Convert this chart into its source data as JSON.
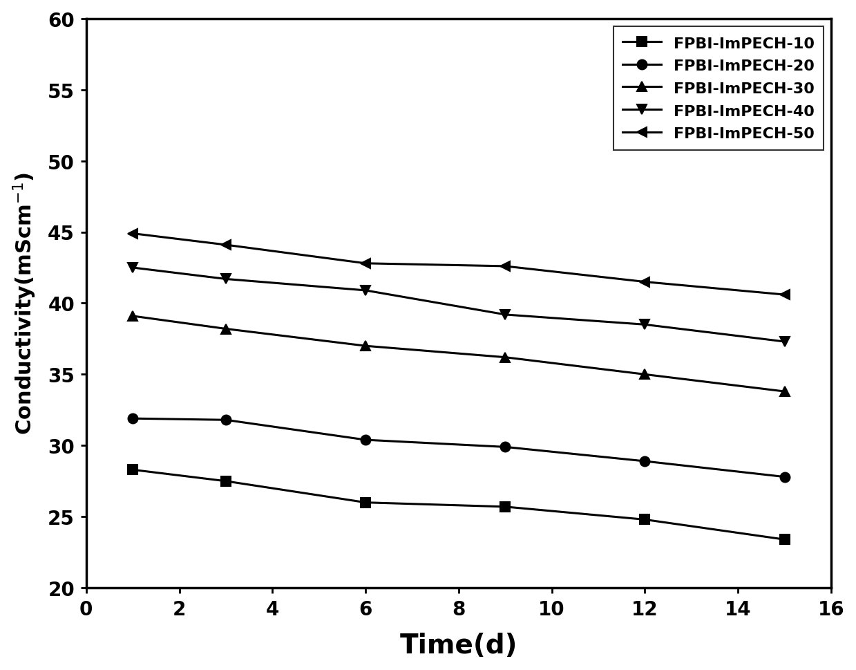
{
  "x": [
    1,
    3,
    6,
    9,
    12,
    15
  ],
  "series": [
    {
      "label": "FPBI-ImPECH-10",
      "y": [
        28.3,
        27.5,
        26.0,
        25.7,
        24.8,
        23.4
      ],
      "marker": "s",
      "marker_size": 10
    },
    {
      "label": "FPBI-ImPECH-20",
      "y": [
        31.9,
        31.8,
        30.4,
        29.9,
        28.9,
        27.8
      ],
      "marker": "o",
      "marker_size": 10
    },
    {
      "label": "FPBI-ImPECH-30",
      "y": [
        39.1,
        38.2,
        37.0,
        36.2,
        35.0,
        33.8
      ],
      "marker": "^",
      "marker_size": 10
    },
    {
      "label": "FPBI-ImPECH-40",
      "y": [
        42.5,
        41.7,
        40.9,
        39.2,
        38.5,
        37.3
      ],
      "marker": "v",
      "marker_size": 10
    },
    {
      "label": "FPBI-ImPECH-50",
      "y": [
        44.9,
        44.1,
        42.8,
        42.6,
        41.5,
        40.6
      ],
      "marker": "<",
      "marker_size": 10
    }
  ],
  "xlabel": "Time(d)",
  "ylabel": "Conductivity(mScm$^{-1}$)",
  "xlim": [
    0,
    16
  ],
  "ylim": [
    20,
    60
  ],
  "xticks": [
    0,
    2,
    4,
    6,
    8,
    10,
    12,
    14,
    16
  ],
  "yticks": [
    20,
    25,
    30,
    35,
    40,
    45,
    50,
    55,
    60
  ],
  "line_color": "#000000",
  "line_width": 2.2,
  "legend_loc": "upper right",
  "background_color": "#ffffff",
  "xlabel_fontsize": 28,
  "ylabel_fontsize": 22,
  "tick_fontsize": 20,
  "legend_fontsize": 16
}
